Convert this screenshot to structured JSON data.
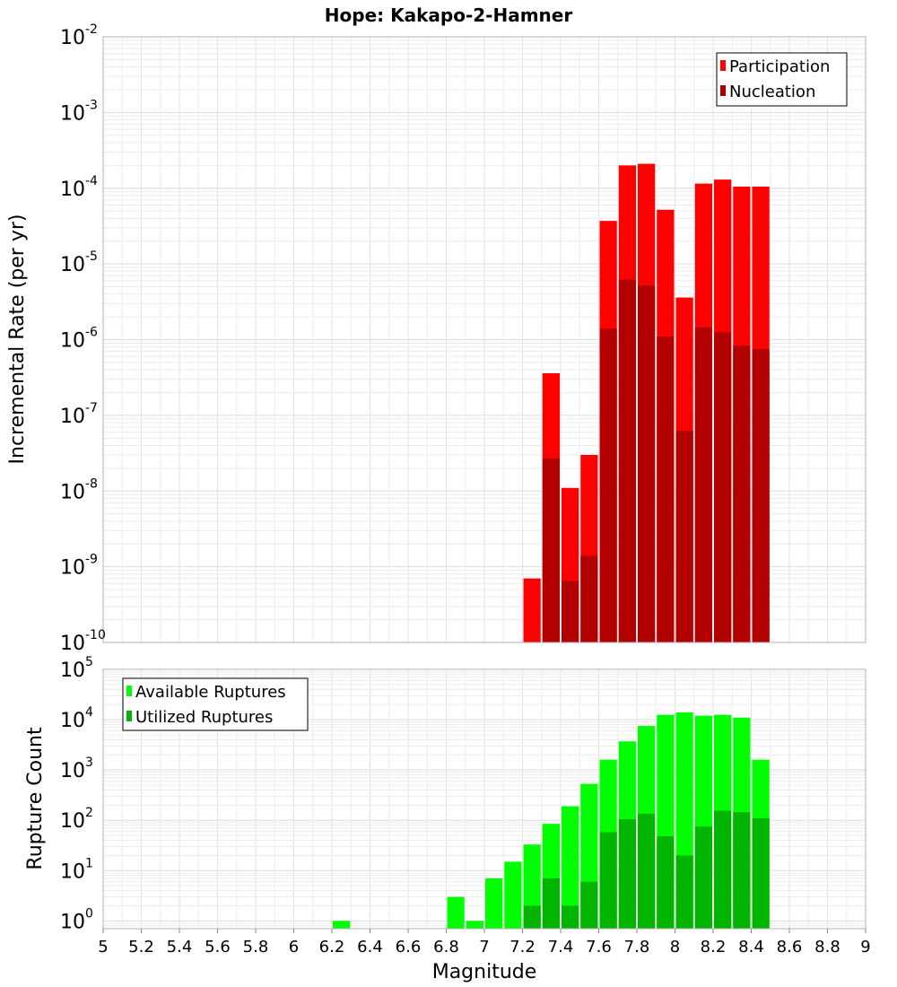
{
  "chart_data": [
    {
      "type": "bar",
      "title": "Hope: Kakapo-2-Hamner",
      "xlabel": "Magnitude",
      "ylabel": "Incremental Rate (per yr)",
      "xlim": [
        5,
        9
      ],
      "ylim": [
        1e-10,
        0.01
      ],
      "yscale": "log",
      "y_tick_exponents": [
        -10,
        -9,
        -8,
        -7,
        -6,
        -5,
        -4,
        -3,
        -2
      ],
      "legend_position": "top-right",
      "grid": true,
      "bin_width": 0.1,
      "bin_centers": [
        7.25,
        7.35,
        7.45,
        7.55,
        7.65,
        7.75,
        7.85,
        7.95,
        8.05,
        8.15,
        8.25,
        8.35,
        8.45
      ],
      "series": [
        {
          "name": "Participation",
          "color": "#ff0000",
          "values": [
            7e-10,
            3.6e-07,
            1.1e-08,
            3e-08,
            3.7e-05,
            0.0002,
            0.00021,
            5.2e-05,
            3.6e-06,
            0.000115,
            0.00013,
            0.000105,
            0.000105
          ]
        },
        {
          "name": "Nucleation",
          "color": "#b20000",
          "values": [
            0,
            2.7e-08,
            6.5e-10,
            1.4e-09,
            1.4e-06,
            6.2e-06,
            5.2e-06,
            1.1e-06,
            6.2e-08,
            1.45e-06,
            1.25e-06,
            8.3e-07,
            7.5e-07
          ]
        }
      ]
    },
    {
      "type": "bar",
      "xlabel": "Magnitude",
      "ylabel": "Rupture Count",
      "xlim": [
        5,
        9
      ],
      "x_ticks": [
        "5",
        "5.2",
        "5.4",
        "5.6",
        "5.8",
        "6",
        "6.2",
        "6.4",
        "6.6",
        "6.8",
        "7",
        "7.2",
        "7.4",
        "7.6",
        "7.8",
        "8",
        "8.2",
        "8.4",
        "8.6",
        "8.8",
        "9"
      ],
      "ylim": [
        0.7,
        100000.0
      ],
      "yscale": "log",
      "y_tick_exponents": [
        0,
        1,
        2,
        3,
        4,
        5
      ],
      "legend_position": "top-left",
      "grid": true,
      "bin_width": 0.1,
      "bin_centers": [
        6.25,
        6.85,
        6.95,
        7.05,
        7.15,
        7.25,
        7.35,
        7.45,
        7.55,
        7.65,
        7.75,
        7.85,
        7.95,
        8.05,
        8.15,
        8.25,
        8.35,
        8.45
      ],
      "series": [
        {
          "name": "Available Ruptures",
          "color": "#00ff00",
          "values": [
            1,
            3,
            1,
            7,
            15,
            33,
            85,
            190,
            530,
            1600,
            3700,
            7500,
            12500,
            14000,
            12000,
            12500,
            11000,
            1600
          ]
        },
        {
          "name": "Utilized Ruptures",
          "color": "#00b400",
          "values": [
            0,
            0,
            0,
            0,
            0,
            2,
            7,
            2,
            6,
            58,
            105,
            135,
            48,
            20,
            75,
            155,
            145,
            110
          ]
        }
      ]
    }
  ]
}
